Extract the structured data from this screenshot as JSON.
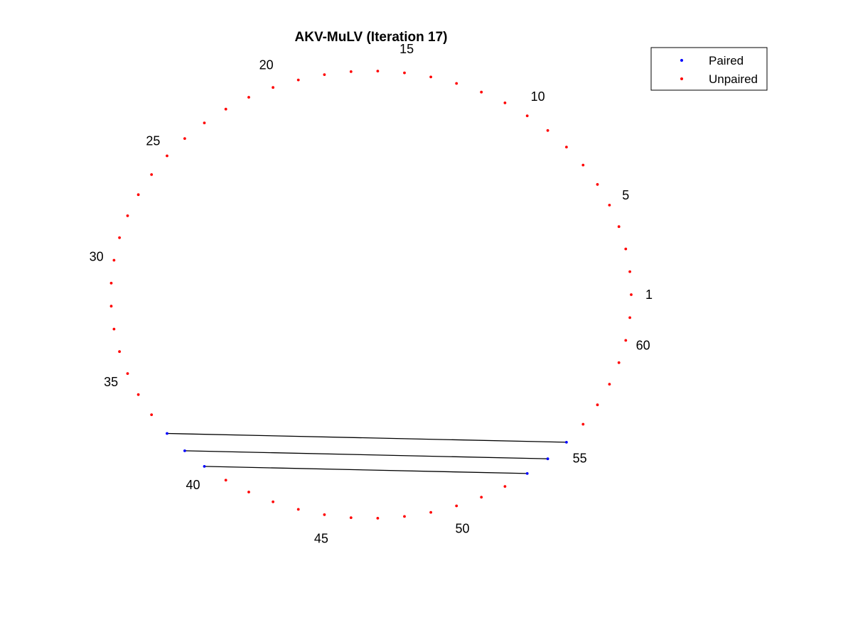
{
  "chart_data": {
    "type": "scatter",
    "title": "AKV-MuLV (Iteration 17)",
    "n_bases": 61,
    "layout": "circular",
    "labeled_indices": [
      1,
      5,
      10,
      15,
      20,
      25,
      30,
      35,
      40,
      45,
      50,
      55,
      60
    ],
    "pairs": [
      [
        38,
        55
      ],
      [
        39,
        54
      ],
      [
        40,
        53
      ]
    ],
    "series": [
      {
        "name": "Paired",
        "color": "#0000ff",
        "marker": "dot",
        "indices": [
          38,
          39,
          40,
          53,
          54,
          55
        ]
      },
      {
        "name": "Unpaired",
        "color": "#ff0000",
        "marker": "dot",
        "indices": [
          1,
          2,
          3,
          4,
          5,
          6,
          7,
          8,
          9,
          10,
          11,
          12,
          13,
          14,
          15,
          16,
          17,
          18,
          19,
          20,
          21,
          22,
          23,
          24,
          25,
          26,
          27,
          28,
          29,
          30,
          31,
          32,
          33,
          34,
          35,
          36,
          37,
          41,
          42,
          43,
          44,
          45,
          46,
          47,
          48,
          49,
          50,
          51,
          52,
          56,
          57,
          58,
          59,
          60,
          61
        ]
      }
    ],
    "pair_line_color": "#000000",
    "legend": {
      "position": "top-right",
      "entries": [
        "Paired",
        "Unpaired"
      ]
    },
    "grid": false,
    "axes_visible": false
  }
}
